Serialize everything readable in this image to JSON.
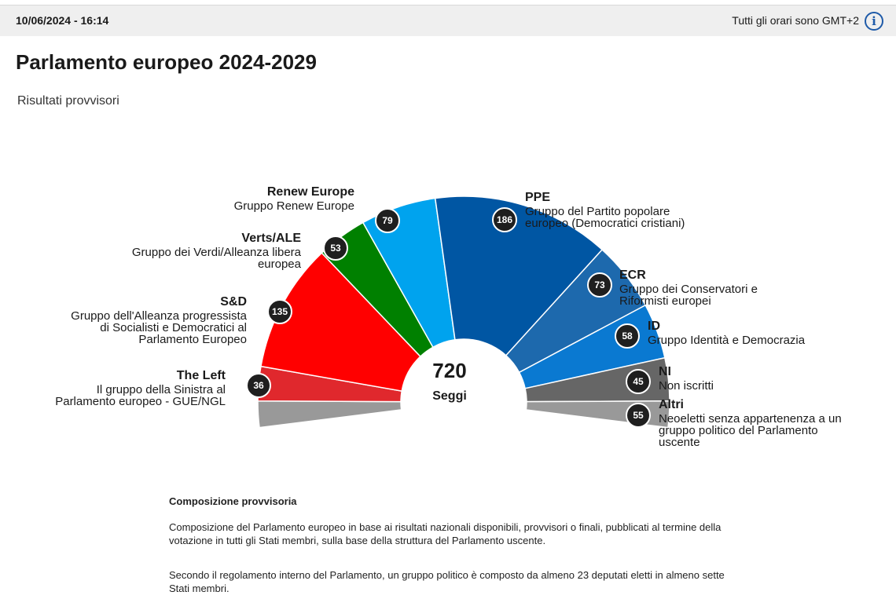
{
  "header": {
    "datetime": "10/06/2024 - 16:14",
    "timezone_note": "Tutti gli orari sono GMT+2",
    "info_icon": "info-icon"
  },
  "title": "Parlamento europeo 2024-2029",
  "subtitle": "Risultati provvisori",
  "chart_data": {
    "type": "pie",
    "shape": "hemicycle",
    "total": {
      "value": "720",
      "label": "Seggi"
    },
    "series": [
      {
        "abbr": "Altri",
        "name": "Neoeletti senza appartenenza a un gruppo politico del Parlamento uscente",
        "seats": 55,
        "color": "#999999",
        "side": "right"
      },
      {
        "abbr": "The Left",
        "name": "Il gruppo della Sinistra al Parlamento europeo - GUE/NGL",
        "seats": 36,
        "color": "#e0282d",
        "side": "left"
      },
      {
        "abbr": "S&D",
        "name": "Gruppo dell'Alleanza progressista di Socialisti e Democratici al Parlamento Europeo",
        "seats": 135,
        "color": "#ff0000",
        "side": "left"
      },
      {
        "abbr": "Verts/ALE",
        "name": "Gruppo dei Verdi/Alleanza libera europea",
        "seats": 53,
        "color": "#008000",
        "side": "left"
      },
      {
        "abbr": "Renew Europe",
        "name": "Gruppo Renew Europe",
        "seats": 79,
        "color": "#00a3ee",
        "side": "left"
      },
      {
        "abbr": "PPE",
        "name": "Gruppo del Partito popolare europeo (Democratici cristiani)",
        "seats": 186,
        "color": "#0056a3",
        "side": "right"
      },
      {
        "abbr": "ECR",
        "name": "Gruppo dei Conservatori e Riformisti europei",
        "seats": 73,
        "color": "#1d69ad",
        "side": "right"
      },
      {
        "abbr": "ID",
        "name": "Gruppo Identità e Democrazia",
        "seats": 58,
        "color": "#0a79d1",
        "side": "right"
      },
      {
        "abbr": "NI",
        "name": "Non iscritti",
        "seats": 45,
        "color": "#666666",
        "side": "right"
      }
    ]
  },
  "notes": {
    "title": "Composizione provvisoria",
    "p1": "Composizione del Parlamento europeo in base ai risultati nazionali disponibili, provvisori o finali, pubblicati al termine della votazione in tutti gli Stati membri, sulla base della struttura del Parlamento uscente.",
    "p2": "Secondo il regolamento interno del Parlamento, un gruppo politico è composto da almeno 23 deputati eletti in almeno sette Stati membri."
  }
}
